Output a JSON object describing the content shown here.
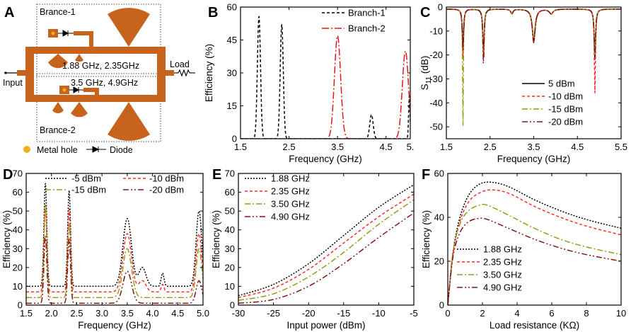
{
  "panelA": {
    "letter": "A",
    "branch1_label": "Brance-1",
    "branch2_label": "Brance-2",
    "freq1_label": "1.88 GHz, 2.35GHz",
    "freq2_label": "3.5 GHz, 4.9GHz",
    "input_label": "Input",
    "load_label": "Load",
    "legend_hole": "Metal hole",
    "legend_diode": "Diode",
    "colors": {
      "copper": "#C8631E",
      "hole": "#F2B01E"
    }
  },
  "chart_data": [
    {
      "id": "B",
      "letter": "B",
      "type": "line",
      "xlabel": "Frequency (GHz)",
      "ylabel": "Efficiency (%)",
      "xlim": [
        1.5,
        5.0
      ],
      "ylim": [
        0,
        60
      ],
      "xticks": [
        1.5,
        2.5,
        3.5,
        4.5,
        5.0
      ],
      "xticklabels": [
        "1.5",
        "2.5",
        "3.5",
        "4.5",
        "5."
      ],
      "yticks": [
        0,
        15,
        30,
        45,
        60
      ],
      "yticklabels": [
        "0",
        "15",
        "30",
        "45",
        "60"
      ],
      "legend": "top-right",
      "series": [
        {
          "name": "Branch-1",
          "color": "#000000",
          "dash": "4,3",
          "peaks": [
            [
              1.88,
              56,
              0.045
            ],
            [
              2.35,
              52,
              0.045
            ],
            [
              4.2,
              11,
              0.05
            ],
            [
              4.98,
              20,
              0.02
            ]
          ],
          "base": 0
        },
        {
          "name": "Branch-2",
          "color": "#E8141C",
          "dash": "10,3,2,3",
          "peaks": [
            [
              3.5,
              47,
              0.09
            ],
            [
              4.9,
              40,
              0.09
            ]
          ],
          "base": 0
        }
      ]
    },
    {
      "id": "C",
      "letter": "C",
      "type": "line",
      "xlabel": "Frequency (GHz)",
      "ylabel": "S11 (dB)",
      "ylabel_main": "S",
      "ylabel_sub": "11",
      "ylabel_unit": " (dB)",
      "xlim": [
        1.5,
        5.5
      ],
      "ylim": [
        -55,
        0
      ],
      "xticks": [
        1.5,
        2.5,
        3.5,
        4.5,
        5.5
      ],
      "xticklabels": [
        "1.5",
        "2.5",
        "3.5",
        "4.5",
        "5.5"
      ],
      "yticks": [
        0,
        -10,
        -20,
        -30,
        -40,
        -50
      ],
      "yticklabels": [
        "0",
        "-10",
        "-20",
        "-30",
        "-40",
        "-50"
      ],
      "legend": "bottom-right",
      "series": [
        {
          "name": "5 dBm",
          "color": "#000000",
          "dash": "",
          "dips": [
            [
              1.88,
              -16,
              0.018
            ],
            [
              2.35,
              -19,
              0.018
            ],
            [
              3.0,
              -2,
              0.03
            ],
            [
              3.5,
              -13,
              0.04
            ],
            [
              3.9,
              -2,
              0.05
            ],
            [
              4.9,
              -21,
              0.02
            ]
          ]
        },
        {
          "name": "-10 dBm",
          "color": "#FF2A2A",
          "dash": "4,3",
          "dips": [
            [
              1.88,
              -20,
              0.018
            ],
            [
              2.35,
              -21,
              0.018
            ],
            [
              3.0,
              -2,
              0.03
            ],
            [
              3.5,
              -14,
              0.04
            ],
            [
              3.9,
              -2,
              0.05
            ],
            [
              4.9,
              -35,
              0.015
            ]
          ]
        },
        {
          "name": "-15 dBm",
          "color": "#9A9A16",
          "dash": "8,3,2,3",
          "dips": [
            [
              1.88,
              -49,
              0.01
            ],
            [
              2.35,
              -20,
              0.018
            ],
            [
              3.0,
              -2,
              0.03
            ],
            [
              3.5,
              -12,
              0.04
            ],
            [
              3.9,
              -2,
              0.05
            ],
            [
              4.9,
              -19,
              0.02
            ]
          ]
        },
        {
          "name": "-20 dBm",
          "color": "#8B1010",
          "dash": "8,3,2,3,2,3",
          "dips": [
            [
              1.88,
              -17,
              0.018
            ],
            [
              2.35,
              -23,
              0.018
            ],
            [
              3.0,
              -2,
              0.03
            ],
            [
              3.5,
              -14,
              0.04
            ],
            [
              3.9,
              -2,
              0.05
            ],
            [
              4.9,
              -18,
              0.02
            ]
          ]
        }
      ]
    },
    {
      "id": "D",
      "letter": "D",
      "type": "line",
      "xlabel": "Frequency (GHz)",
      "ylabel": "Efficiency (%)",
      "xlim": [
        1.5,
        5.0
      ],
      "ylim": [
        0,
        70
      ],
      "xticks": [
        1.5,
        2.0,
        2.5,
        3.0,
        3.5,
        4.0,
        4.5,
        5.0
      ],
      "xticklabels": [
        "1.5",
        "2.0",
        "2.5",
        "3.0",
        "3.5",
        "4.0",
        "4.5",
        "5.0"
      ],
      "yticks": [
        0,
        10,
        20,
        30,
        40,
        50,
        60,
        70
      ],
      "yticklabels": [
        "0",
        "10",
        "20",
        "30",
        "40",
        "50",
        "60",
        "70"
      ],
      "legend": "top",
      "series": [
        {
          "name": "-5 dBm",
          "color": "#000000",
          "dash": "2,2",
          "base": 10,
          "peaks": [
            [
              1.88,
              55,
              0.04
            ],
            [
              2.35,
              51,
              0.04
            ],
            [
              3.5,
              36,
              0.12
            ],
            [
              3.8,
              10,
              0.1
            ],
            [
              4.2,
              7,
              0.04
            ],
            [
              4.92,
              40,
              0.08
            ]
          ]
        },
        {
          "name": "-10 dBm",
          "color": "#FF2A2A",
          "dash": "4,3",
          "base": 7,
          "peaks": [
            [
              1.88,
              46,
              0.04
            ],
            [
              2.35,
              44,
              0.04
            ],
            [
              3.5,
              31,
              0.12
            ],
            [
              3.8,
              6,
              0.1
            ],
            [
              4.2,
              4,
              0.04
            ],
            [
              4.92,
              31,
              0.08
            ]
          ]
        },
        {
          "name": "-15 dBm",
          "color": "#9A9A16",
          "dash": "8,3,2,3",
          "base": 4,
          "peaks": [
            [
              1.88,
              50,
              0.04
            ],
            [
              2.35,
              39,
              0.04
            ],
            [
              3.5,
              26,
              0.12
            ],
            [
              4.92,
              26,
              0.08
            ]
          ]
        },
        {
          "name": "-20 dBm",
          "color": "#8B1010",
          "dash": "8,3,2,3,2,3",
          "base": 1,
          "peaks": [
            [
              1.88,
              36,
              0.04
            ],
            [
              2.35,
              34,
              0.04
            ],
            [
              3.5,
              17,
              0.12
            ],
            [
              4.92,
              12,
              0.08
            ]
          ]
        }
      ]
    },
    {
      "id": "E",
      "letter": "E",
      "type": "line",
      "xlabel": "Input power (dBm)",
      "ylabel": "Efficiency (%)",
      "xlim": [
        -30,
        -5
      ],
      "ylim": [
        0,
        70
      ],
      "xticks": [
        -30,
        -25,
        -20,
        -15,
        -10,
        -5
      ],
      "xticklabels": [
        "-30",
        "-25",
        "-20",
        "-15",
        "-10",
        "-5"
      ],
      "yticks": [
        0,
        10,
        20,
        30,
        40,
        50,
        60,
        70
      ],
      "yticklabels": [
        "0",
        "10",
        "20",
        "30",
        "40",
        "50",
        "60",
        "70"
      ],
      "legend": "top-left",
      "series": [
        {
          "name": "1.88 GHz",
          "color": "#000000",
          "dash": "2,2",
          "points": [
            [
              -30,
              5
            ],
            [
              -25,
              11
            ],
            [
              -20,
              22
            ],
            [
              -15,
              37
            ],
            [
              -10,
              52
            ],
            [
              -5,
              64
            ]
          ]
        },
        {
          "name": "2.35 GHz",
          "color": "#FF2A2A",
          "dash": "4,3",
          "points": [
            [
              -30,
              4
            ],
            [
              -25,
              9
            ],
            [
              -20,
              19
            ],
            [
              -15,
              33
            ],
            [
              -10,
              47
            ],
            [
              -5,
              59
            ]
          ]
        },
        {
          "name": "3.50 GHz",
          "color": "#9A9A16",
          "dash": "8,3,2,3",
          "points": [
            [
              -30,
              2.5
            ],
            [
              -25,
              6
            ],
            [
              -20,
              15
            ],
            [
              -15,
              28
            ],
            [
              -10,
              43
            ],
            [
              -5,
              56
            ]
          ]
        },
        {
          "name": "4.90 GHz",
          "color": "#8B1010",
          "dash": "8,3,2,3,2,3",
          "points": [
            [
              -30,
              1
            ],
            [
              -25,
              3
            ],
            [
              -20,
              10
            ],
            [
              -15,
              22
            ],
            [
              -10,
              36
            ],
            [
              -5,
              49
            ]
          ]
        }
      ]
    },
    {
      "id": "F",
      "letter": "F",
      "type": "line",
      "xlabel": "Load resistance (KΩ)",
      "ylabel": "Efficiency (%)",
      "xlim": [
        0,
        10
      ],
      "ylim": [
        0,
        60
      ],
      "xticks": [
        0,
        2,
        4,
        6,
        8,
        10
      ],
      "xticklabels": [
        "0",
        "2",
        "4",
        "6",
        "8",
        "10"
      ],
      "yticks": [
        0,
        20,
        40,
        60
      ],
      "yticklabels": [
        "0",
        "20",
        "40",
        "60"
      ],
      "legend": "bottom-left",
      "series": [
        {
          "name": "1.88 GHz",
          "color": "#000000",
          "dash": "2,2",
          "points": [
            [
              0,
              0
            ],
            [
              0.3,
              24
            ],
            [
              0.7,
              40
            ],
            [
              1.2,
              50
            ],
            [
              1.8,
              55
            ],
            [
              2.5,
              56
            ],
            [
              3.5,
              54
            ],
            [
              5,
              48
            ],
            [
              6.5,
              43
            ],
            [
              8,
              39
            ],
            [
              10,
              35
            ]
          ]
        },
        {
          "name": "2.35 GHz",
          "color": "#FF2A2A",
          "dash": "4,3",
          "points": [
            [
              0,
              0
            ],
            [
              0.3,
              23
            ],
            [
              0.7,
              38
            ],
            [
              1.2,
              47
            ],
            [
              1.8,
              51
            ],
            [
              2.5,
              52.5
            ],
            [
              3.5,
              51
            ],
            [
              5,
              45
            ],
            [
              6.5,
              40
            ],
            [
              8,
              36
            ],
            [
              10,
              32
            ]
          ]
        },
        {
          "name": "3.50 GHz",
          "color": "#9A9A16",
          "dash": "8,3,2,3",
          "points": [
            [
              0,
              0
            ],
            [
              0.3,
              24
            ],
            [
              0.7,
              37
            ],
            [
              1.2,
              43
            ],
            [
              1.8,
              45.5
            ],
            [
              2.3,
              45.5
            ],
            [
              3.5,
              41
            ],
            [
              5,
              35
            ],
            [
              6.5,
              30
            ],
            [
              8,
              26.5
            ],
            [
              10,
              23
            ]
          ]
        },
        {
          "name": "4.90 GHz",
          "color": "#8B1010",
          "dash": "8,3,2,3,2,3",
          "points": [
            [
              0,
              0
            ],
            [
              0.3,
              22
            ],
            [
              0.7,
              33
            ],
            [
              1.2,
              38
            ],
            [
              1.8,
              39.5
            ],
            [
              2.3,
              39
            ],
            [
              3.5,
              35
            ],
            [
              5,
              30
            ],
            [
              6.5,
              26
            ],
            [
              8,
              23
            ],
            [
              10,
              20
            ]
          ]
        }
      ]
    }
  ]
}
